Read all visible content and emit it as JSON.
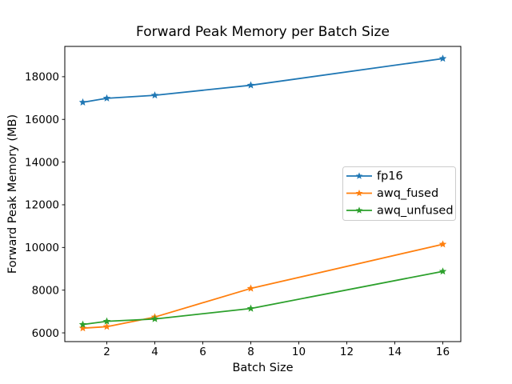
{
  "chart_data": {
    "type": "line",
    "title": "Forward Peak Memory per Batch Size",
    "xlabel": "Batch Size",
    "ylabel": "Forward Peak Memory (MB)",
    "x": [
      1,
      2,
      4,
      8,
      16
    ],
    "series": [
      {
        "name": "fp16",
        "color": "#1f77b4",
        "values": [
          16800,
          16990,
          17130,
          17600,
          18850
        ]
      },
      {
        "name": "awq_fused",
        "color": "#ff7f0e",
        "values": [
          6220,
          6290,
          6740,
          8080,
          10150
        ]
      },
      {
        "name": "awq_unfused",
        "color": "#2ca02c",
        "values": [
          6390,
          6540,
          6650,
          7140,
          8880
        ]
      }
    ],
    "marker": "star",
    "xticks": [
      2,
      4,
      6,
      8,
      10,
      12,
      14,
      16
    ],
    "yticks": [
      6000,
      8000,
      10000,
      12000,
      14000,
      16000,
      18000
    ],
    "xlim": [
      0.25,
      16.75
    ],
    "ylim": [
      5590,
      19420
    ],
    "grid": false,
    "legend_position": "center-right",
    "background_color": "#ffffff",
    "spine_color": "#000000"
  }
}
